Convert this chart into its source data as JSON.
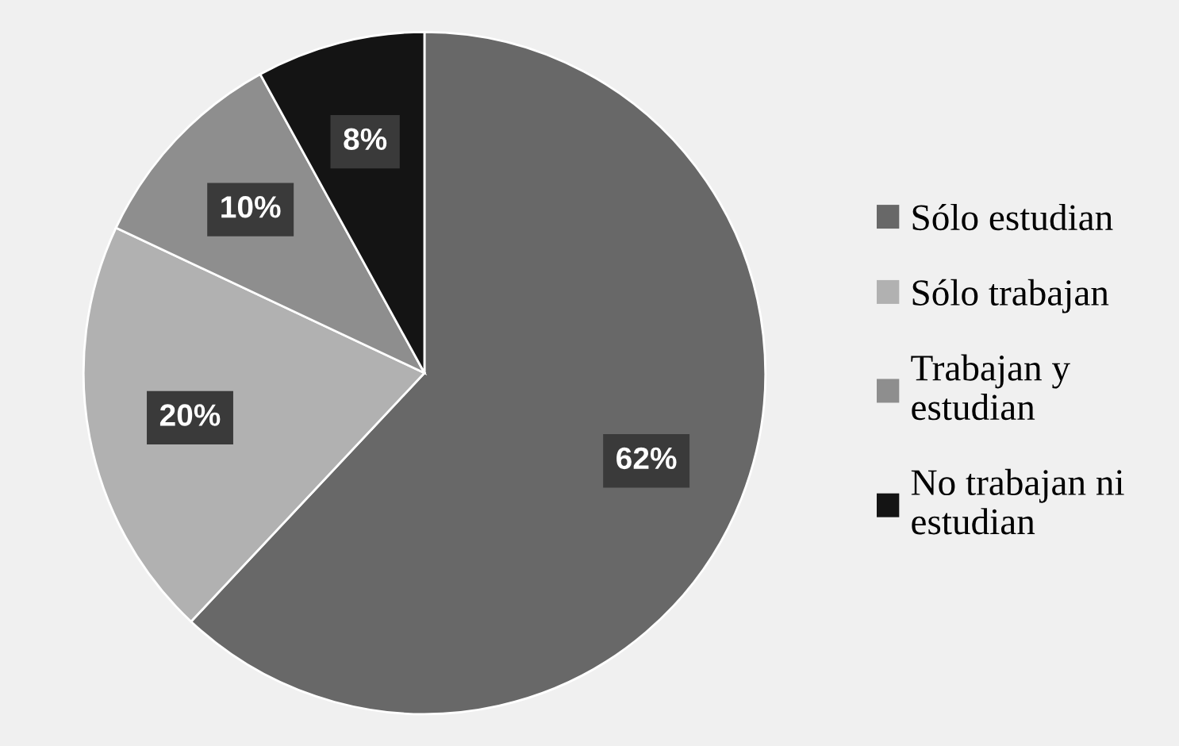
{
  "chart_data": {
    "type": "pie",
    "categories": [
      "Sólo estudian",
      "Sólo trabajan",
      "Trabajan y estudian",
      "No trabajan ni estudian"
    ],
    "values": [
      62,
      20,
      10,
      8
    ],
    "colors": [
      "#686868",
      "#b1b1b1",
      "#8e8e8e",
      "#141414"
    ],
    "value_labels": [
      "62%",
      "20%",
      "10%",
      "8%"
    ],
    "legend": "right"
  }
}
